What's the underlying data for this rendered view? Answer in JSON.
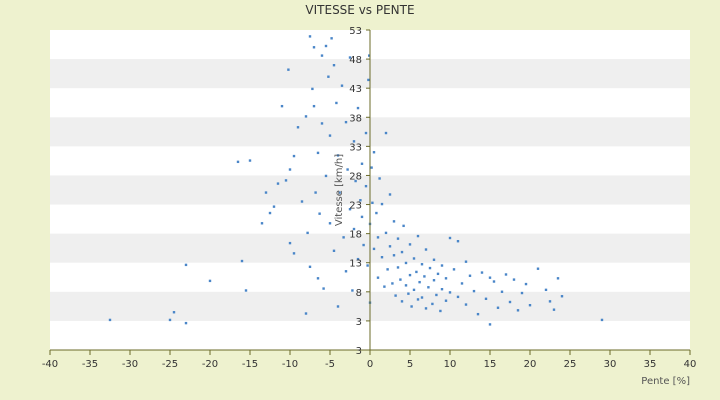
{
  "chart_data": {
    "type": "scatter",
    "title": "VITESSE vs PENTE",
    "xlabel": "Pente [%]",
    "ylabel": "Vitesse [km/h]",
    "xlim": [
      -40,
      40
    ],
    "ylim": [
      3,
      53
    ],
    "x_ticks": [
      "-40",
      "-35",
      "-30",
      "-25",
      "-20",
      "-15",
      "-10",
      "-5",
      "0",
      "5",
      "10",
      "15",
      "20",
      "25",
      "30",
      "35",
      "40"
    ],
    "y_ticks": [
      "3",
      "3",
      "8",
      "13",
      "18",
      "23",
      "28",
      "33",
      "38",
      "43",
      "48",
      "53"
    ],
    "grid": "alternating horizontal bands",
    "point_color": "#4a86c8",
    "band_color": "#efefef",
    "plot_bg": "#ffffff",
    "series": [
      {
        "points": [
          [
            -32.5,
            7.7
          ],
          [
            -25,
            7.7
          ],
          [
            -24.5,
            8.9
          ],
          [
            -23,
            7.2
          ],
          [
            -23,
            16.3
          ],
          [
            -20,
            13.8
          ],
          [
            -16,
            16.9
          ],
          [
            -15.5,
            12.3
          ],
          [
            -16.5,
            32.4
          ],
          [
            -15,
            32.6
          ],
          [
            -13.5,
            22.8
          ],
          [
            -13,
            27.6
          ],
          [
            -12.5,
            24.4
          ],
          [
            -12,
            25.4
          ],
          [
            -11.5,
            29.0
          ],
          [
            -11,
            41.1
          ],
          [
            -10.5,
            29.5
          ],
          [
            -10.2,
            46.8
          ],
          [
            -10,
            31.2
          ],
          [
            -10,
            19.7
          ],
          [
            -9.5,
            18.1
          ],
          [
            -9.5,
            33.3
          ],
          [
            -9,
            37.8
          ],
          [
            -8.5,
            26.2
          ],
          [
            -8,
            8.7
          ],
          [
            -8,
            39.5
          ],
          [
            -7.8,
            21.3
          ],
          [
            -7.5,
            16.0
          ],
          [
            -7.5,
            52.0
          ],
          [
            -7.2,
            43.8
          ],
          [
            -7,
            50.3
          ],
          [
            -7,
            41.1
          ],
          [
            -6.8,
            27.6
          ],
          [
            -6.5,
            33.8
          ],
          [
            -6.5,
            14.2
          ],
          [
            -6.3,
            24.3
          ],
          [
            -6,
            49.0
          ],
          [
            -6,
            38.4
          ],
          [
            -5.8,
            12.6
          ],
          [
            -5.5,
            50.5
          ],
          [
            -5.5,
            30.2
          ],
          [
            -5.2,
            45.7
          ],
          [
            -5,
            36.5
          ],
          [
            -5,
            22.8
          ],
          [
            -4.8,
            51.7
          ],
          [
            -4.5,
            47.5
          ],
          [
            -4.5,
            18.5
          ],
          [
            -4.2,
            41.6
          ],
          [
            -4,
            33.4
          ],
          [
            -4,
            9.8
          ],
          [
            -3.8,
            27.6
          ],
          [
            -3.5,
            44.3
          ],
          [
            -3.3,
            20.6
          ],
          [
            -3,
            38.6
          ],
          [
            -3,
            15.3
          ],
          [
            -2.8,
            31.2
          ],
          [
            -2.5,
            25.0
          ],
          [
            -2.5,
            48.7
          ],
          [
            -2.2,
            12.3
          ],
          [
            -2,
            35.6
          ],
          [
            -2,
            21.9
          ],
          [
            -1.8,
            29.4
          ],
          [
            -1.5,
            17.2
          ],
          [
            -1.5,
            40.8
          ],
          [
            -1.2,
            26.4
          ],
          [
            -1,
            32.1
          ],
          [
            -1,
            23.8
          ],
          [
            -0.8,
            19.4
          ],
          [
            -0.5,
            36.9
          ],
          [
            -0.5,
            28.6
          ],
          [
            -0.3,
            16.2
          ],
          [
            -0.2,
            45.2
          ],
          [
            -0.1,
            49.0
          ],
          [
            0,
            10.4
          ],
          [
            0,
            22.7
          ],
          [
            0.2,
            31.5
          ],
          [
            0.3,
            26.0
          ],
          [
            0.5,
            18.8
          ],
          [
            0.5,
            33.9
          ],
          [
            0.8,
            24.4
          ],
          [
            1,
            14.3
          ],
          [
            1,
            20.6
          ],
          [
            1.2,
            29.8
          ],
          [
            1.5,
            17.5
          ],
          [
            1.5,
            25.8
          ],
          [
            1.8,
            12.9
          ],
          [
            2,
            21.3
          ],
          [
            2,
            36.9
          ],
          [
            2.2,
            15.6
          ],
          [
            2.5,
            19.2
          ],
          [
            2.5,
            27.3
          ],
          [
            2.8,
            13.4
          ],
          [
            3,
            17.8
          ],
          [
            3,
            23.1
          ],
          [
            3.2,
            11.5
          ],
          [
            3.5,
            15.9
          ],
          [
            3.5,
            20.4
          ],
          [
            3.8,
            14.0
          ],
          [
            4,
            18.3
          ],
          [
            4,
            10.6
          ],
          [
            4.2,
            22.4
          ],
          [
            4.5,
            13.1
          ],
          [
            4.5,
            16.6
          ],
          [
            4.8,
            11.8
          ],
          [
            5,
            19.5
          ],
          [
            5,
            14.7
          ],
          [
            5.2,
            9.8
          ],
          [
            5.5,
            17.3
          ],
          [
            5.5,
            12.4
          ],
          [
            5.8,
            15.2
          ],
          [
            6,
            10.9
          ],
          [
            6,
            20.8
          ],
          [
            6.2,
            13.6
          ],
          [
            6.5,
            16.4
          ],
          [
            6.5,
            11.2
          ],
          [
            6.8,
            14.5
          ],
          [
            7,
            18.7
          ],
          [
            7,
            9.5
          ],
          [
            7.3,
            12.8
          ],
          [
            7.5,
            15.8
          ],
          [
            7.8,
            10.2
          ],
          [
            8,
            13.9
          ],
          [
            8,
            17.1
          ],
          [
            8.3,
            11.6
          ],
          [
            8.5,
            14.9
          ],
          [
            8.8,
            9.1
          ],
          [
            9,
            12.5
          ],
          [
            9,
            16.2
          ],
          [
            9.5,
            10.7
          ],
          [
            9.5,
            14.2
          ],
          [
            10,
            12.0
          ],
          [
            10,
            20.5
          ],
          [
            10.5,
            15.6
          ],
          [
            11,
            11.3
          ],
          [
            11,
            20.0
          ],
          [
            11.5,
            13.4
          ],
          [
            12,
            16.8
          ],
          [
            12,
            10.1
          ],
          [
            12.5,
            14.6
          ],
          [
            13,
            12.2
          ],
          [
            13.5,
            8.6
          ],
          [
            14,
            15.1
          ],
          [
            14.5,
            11.0
          ],
          [
            15,
            14.3
          ],
          [
            15,
            7.0
          ],
          [
            15.5,
            13.7
          ],
          [
            16,
            9.6
          ],
          [
            16.5,
            12.1
          ],
          [
            17,
            14.8
          ],
          [
            17.5,
            10.5
          ],
          [
            18,
            14.0
          ],
          [
            18.5,
            9.2
          ],
          [
            19,
            11.9
          ],
          [
            19.5,
            13.3
          ],
          [
            20,
            10.0
          ],
          [
            21,
            15.7
          ],
          [
            22,
            12.4
          ],
          [
            22.5,
            10.6
          ],
          [
            23,
            9.3
          ],
          [
            23.5,
            14.2
          ],
          [
            24,
            11.4
          ],
          [
            29,
            7.7
          ]
        ]
      }
    ]
  }
}
